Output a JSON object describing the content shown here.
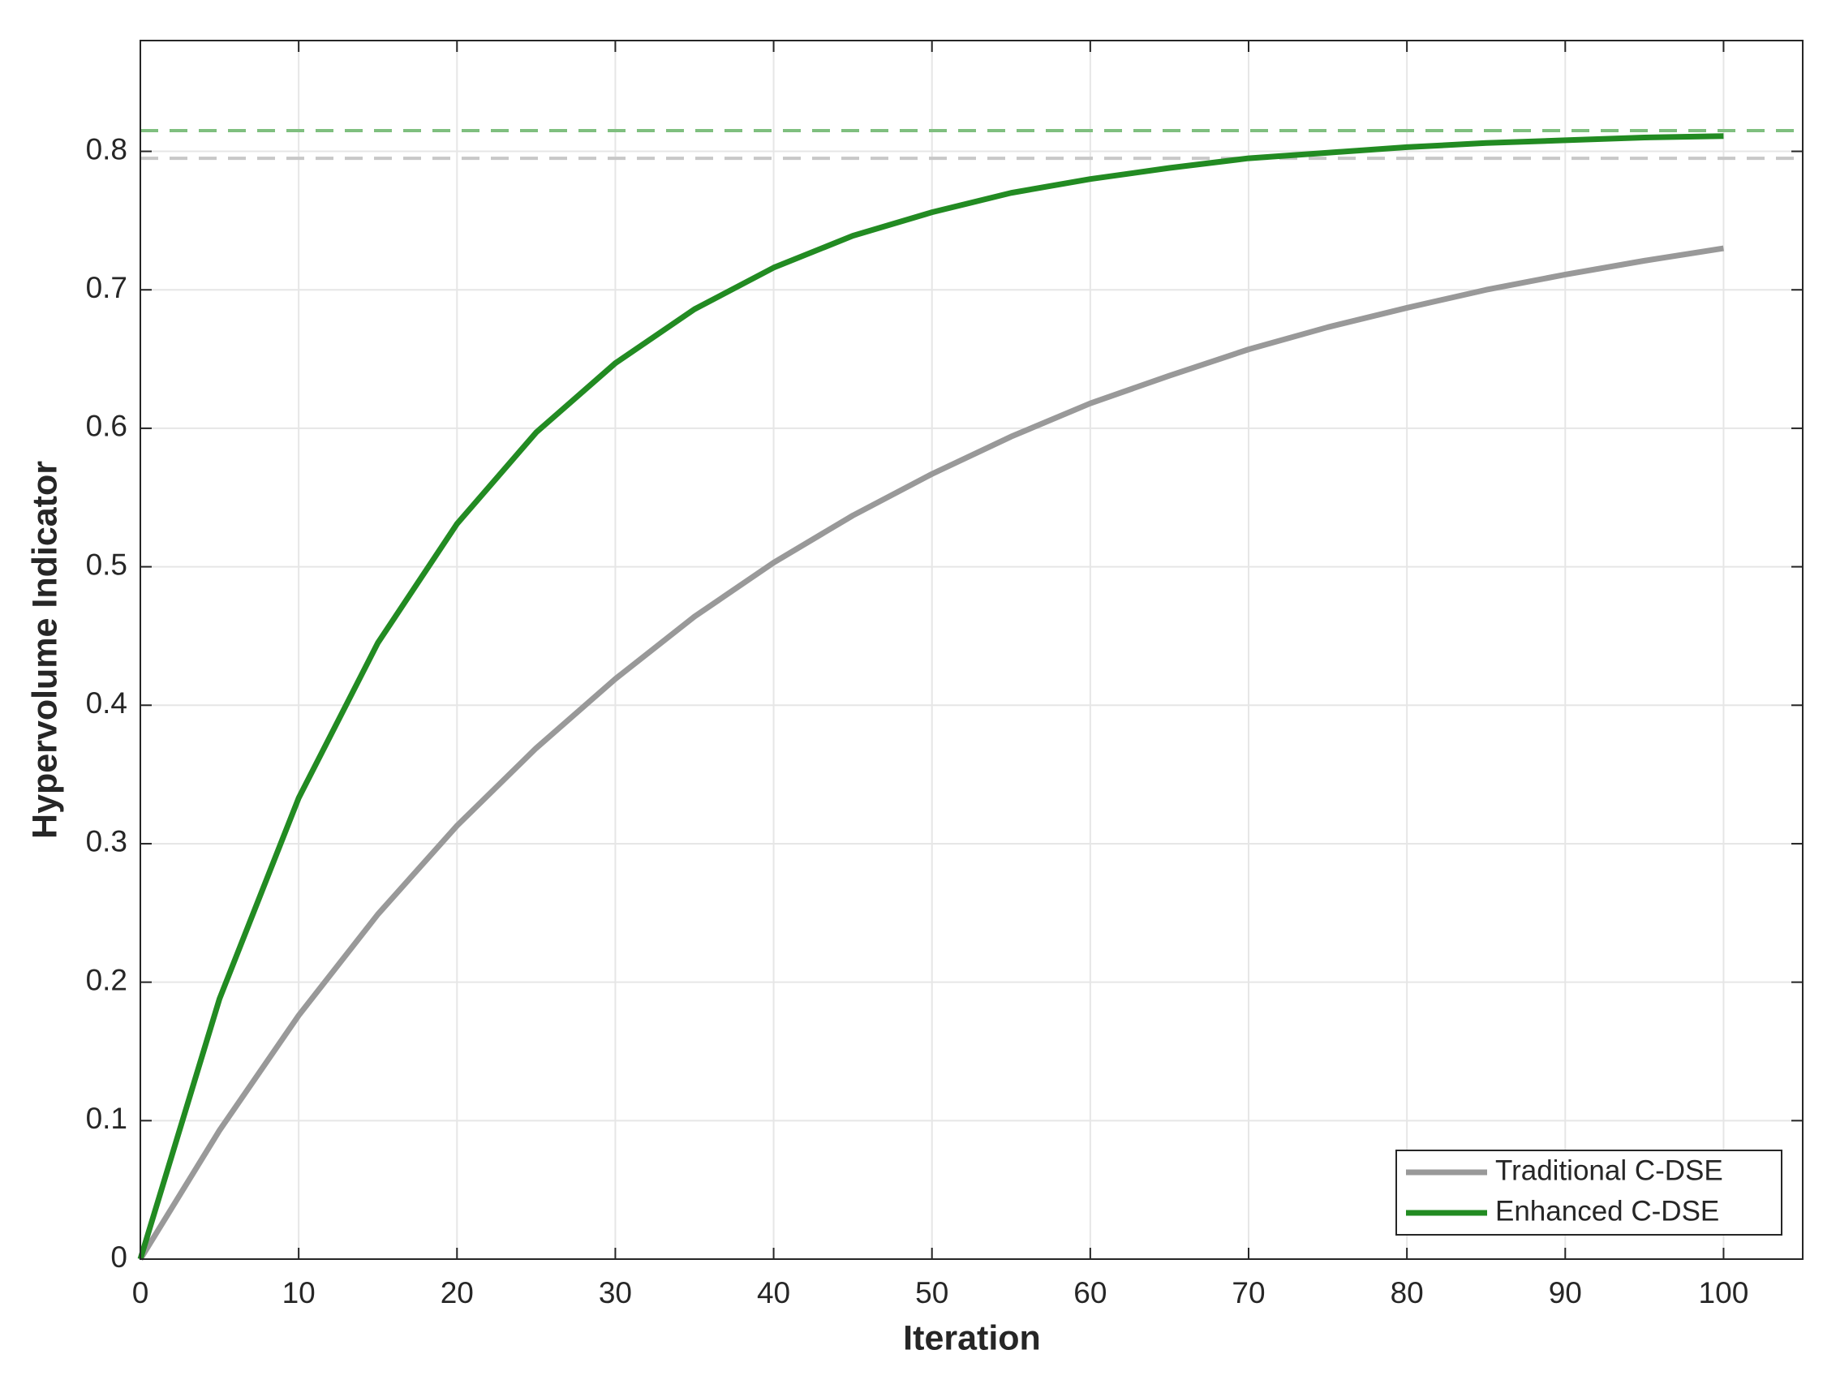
{
  "chart_data": {
    "type": "line",
    "x_label": "Iteration",
    "y_label": "Hypervolume Indicator",
    "x": [
      0,
      5,
      10,
      15,
      20,
      25,
      30,
      35,
      40,
      45,
      50,
      55,
      60,
      65,
      70,
      75,
      80,
      85,
      90,
      95,
      100
    ],
    "series": [
      {
        "name": "Traditional C-DSE",
        "color": "#999999",
        "values": [
          0,
          0.093,
          0.176,
          0.249,
          0.313,
          0.369,
          0.419,
          0.464,
          0.503,
          0.537,
          0.567,
          0.594,
          0.618,
          0.638,
          0.657,
          0.673,
          0.687,
          0.7,
          0.711,
          0.721,
          0.73
        ]
      },
      {
        "name": "Enhanced C-DSE",
        "color": "#228b22",
        "values": [
          0,
          0.188,
          0.333,
          0.445,
          0.531,
          0.597,
          0.647,
          0.686,
          0.716,
          0.739,
          0.756,
          0.77,
          0.78,
          0.788,
          0.795,
          0.799,
          0.803,
          0.806,
          0.808,
          0.81,
          0.811
        ]
      }
    ],
    "reference_lines": [
      {
        "value": 0.815,
        "color": "#7fbf7f"
      },
      {
        "value": 0.795,
        "color": "#c8c8c8"
      }
    ],
    "xlim": [
      0,
      105
    ],
    "ylim": [
      0,
      0.88
    ],
    "xticks": [
      0,
      10,
      20,
      30,
      40,
      50,
      60,
      70,
      80,
      90,
      100
    ],
    "yticks": [
      0,
      0.1,
      0.2,
      0.3,
      0.4,
      0.5,
      0.6,
      0.7,
      0.8
    ],
    "grid": true,
    "legend": "lower right"
  }
}
